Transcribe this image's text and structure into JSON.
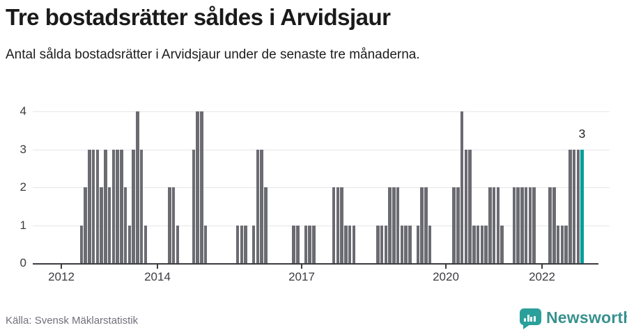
{
  "header": {
    "title": "Tre bostadsrätter såldes i Arvidsjaur",
    "subtitle": "Antal sålda bostadsrätter i Arvidsjaur under de senaste tre månaderna."
  },
  "footer": {
    "source": "Källa: Svensk Mäklarstatistik",
    "brand": "Newsworthy"
  },
  "chart_data": {
    "type": "bar",
    "title": "Tre bostadsrätter såldes i Arvidsjaur",
    "xlabel": "",
    "ylabel": "",
    "x_unit": "month",
    "x_start": "2012-01",
    "x_end": "2022-11",
    "ylim": [
      0,
      4
    ],
    "y_ticks": [
      0,
      1,
      2,
      3,
      4
    ],
    "grid": true,
    "legend": false,
    "x_ticks": [
      {
        "label": "2012",
        "month_index": 0
      },
      {
        "label": "2014",
        "month_index": 24
      },
      {
        "label": "2017",
        "month_index": 60
      },
      {
        "label": "2020",
        "month_index": 96
      },
      {
        "label": "2022",
        "month_index": 120
      }
    ],
    "values_by_year": {
      "2012": [
        0,
        0,
        0,
        0,
        0,
        1,
        2,
        3,
        3,
        3,
        2,
        3
      ],
      "2013": [
        2,
        3,
        3,
        3,
        2,
        1,
        3,
        4,
        3,
        1,
        0,
        0
      ],
      "2014": [
        0,
        0,
        0,
        2,
        2,
        1,
        0,
        0,
        0,
        3,
        4,
        4
      ],
      "2015": [
        1,
        0,
        0,
        0,
        0,
        0,
        0,
        0,
        1,
        1,
        1,
        0
      ],
      "2016": [
        1,
        3,
        3,
        2,
        0,
        0,
        0,
        0,
        0,
        0,
        1,
        1
      ],
      "2017": [
        0,
        1,
        1,
        1,
        0,
        0,
        0,
        0,
        2,
        2,
        2,
        1
      ],
      "2018": [
        1,
        1,
        0,
        0,
        0,
        0,
        0,
        1,
        1,
        1,
        2,
        2
      ],
      "2019": [
        2,
        1,
        1,
        1,
        0,
        1,
        2,
        2,
        1,
        0,
        0,
        0
      ],
      "2020": [
        0,
        0,
        2,
        2,
        4,
        3,
        3,
        1,
        1,
        1,
        1,
        2
      ],
      "2021": [
        2,
        2,
        1,
        0,
        0,
        2,
        2,
        2,
        2,
        2,
        2,
        0
      ],
      "2022": [
        0,
        0,
        2,
        2,
        1,
        1,
        1,
        3,
        3,
        3,
        3
      ]
    },
    "highlight": {
      "month": "2022-11",
      "value": 3,
      "label": "3"
    },
    "colors": {
      "bar": "#6b6b72",
      "highlight": "#009e9a",
      "grid": "#e6e6e6",
      "axis": "#3c3c42",
      "brand": "#2aa09b"
    }
  }
}
